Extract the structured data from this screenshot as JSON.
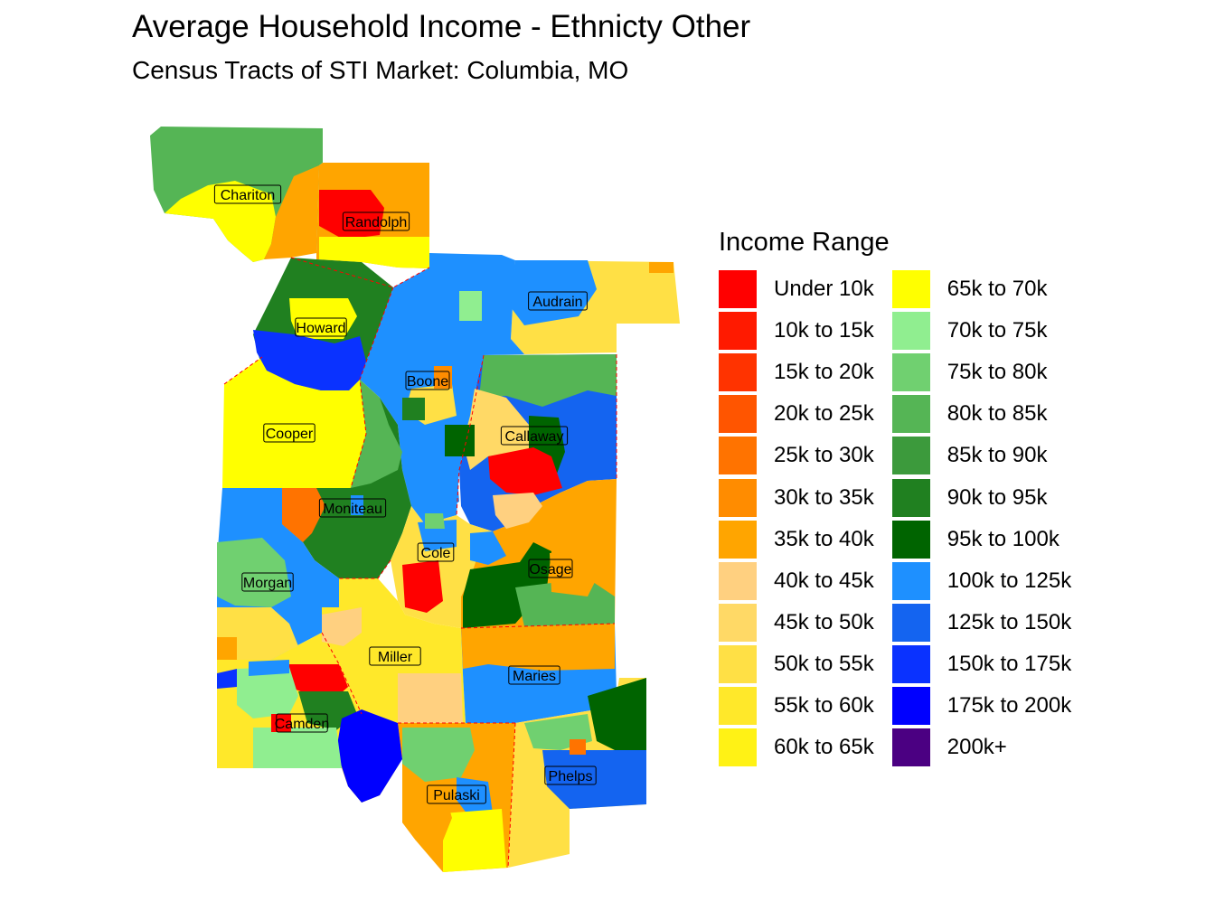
{
  "title": "Average Household Income - Ethnicty Other",
  "subtitle": "Census Tracts of STI Market: Columbia, MO",
  "legend": {
    "title": "Income Range",
    "items": [
      {
        "label": "Under 10k",
        "color": "#ff0000"
      },
      {
        "label": "10k to 15k",
        "color": "#ff1a00"
      },
      {
        "label": "15k to 20k",
        "color": "#ff3300"
      },
      {
        "label": "20k to 25k",
        "color": "#ff5500"
      },
      {
        "label": "25k to 30k",
        "color": "#ff7300"
      },
      {
        "label": "30k to 35k",
        "color": "#ff8c00"
      },
      {
        "label": "35k to 40k",
        "color": "#ffa500"
      },
      {
        "label": "40k to 45k",
        "color": "#ffd080"
      },
      {
        "label": "45k to 50k",
        "color": "#ffd966"
      },
      {
        "label": "50k to 55k",
        "color": "#ffe045"
      },
      {
        "label": "55k to 60k",
        "color": "#ffe82a"
      },
      {
        "label": "60k to 65k",
        "color": "#fff215"
      },
      {
        "label": "65k to 70k",
        "color": "#ffff00"
      },
      {
        "label": "70k to 75k",
        "color": "#90ee90"
      },
      {
        "label": "75k to 80k",
        "color": "#70d070"
      },
      {
        "label": "80k to 85k",
        "color": "#55b555"
      },
      {
        "label": "85k to 90k",
        "color": "#3c9a3c"
      },
      {
        "label": "90k to 95k",
        "color": "#208020"
      },
      {
        "label": "95k to 100k",
        "color": "#006400"
      },
      {
        "label": "100k to 125k",
        "color": "#1e90ff"
      },
      {
        "label": "125k to 150k",
        "color": "#1464f0"
      },
      {
        "label": "150k to 175k",
        "color": "#0a32ff"
      },
      {
        "label": "175k to 200k",
        "color": "#0000ff"
      },
      {
        "label": "200k+",
        "color": "#4b0082"
      }
    ]
  },
  "counties": [
    {
      "name": "Chariton",
      "income_range": "80k to 85k"
    },
    {
      "name": "Randolph",
      "income_range": "35k to 40k"
    },
    {
      "name": "Audrain",
      "income_range": "50k to 55k"
    },
    {
      "name": "Howard",
      "income_range": "90k to 95k"
    },
    {
      "name": "Boone",
      "income_range": "100k to 125k"
    },
    {
      "name": "Cooper",
      "income_range": "65k to 70k"
    },
    {
      "name": "Callaway",
      "income_range": "125k to 150k"
    },
    {
      "name": "Moniteau",
      "income_range": "90k to 95k"
    },
    {
      "name": "Cole",
      "income_range": "50k to 55k"
    },
    {
      "name": "Osage",
      "income_range": "35k to 40k"
    },
    {
      "name": "Morgan",
      "income_range": "100k to 125k"
    },
    {
      "name": "Miller",
      "income_range": "55k to 60k"
    },
    {
      "name": "Maries",
      "income_range": "100k to 125k"
    },
    {
      "name": "Camden",
      "income_range": "55k to 60k"
    },
    {
      "name": "Pulaski",
      "income_range": "35k to 40k"
    },
    {
      "name": "Phelps",
      "income_range": "50k to 55k"
    }
  ]
}
